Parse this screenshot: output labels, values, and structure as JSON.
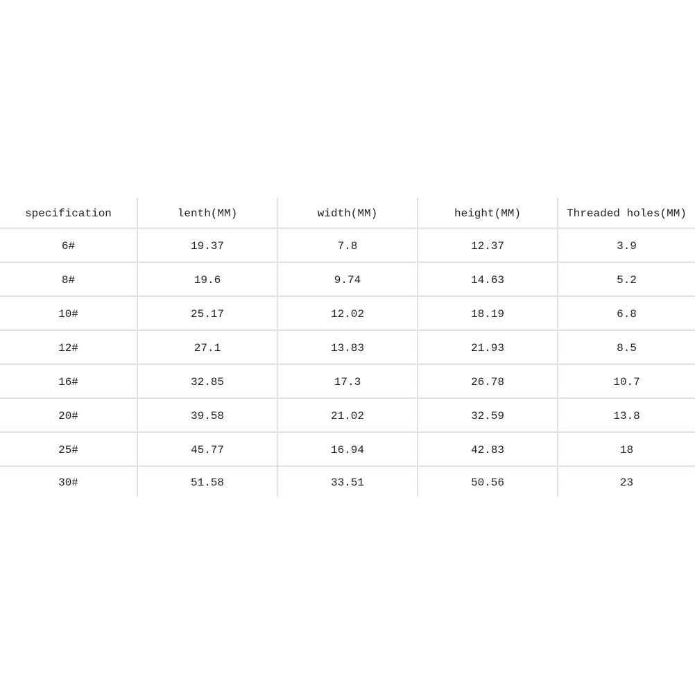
{
  "table": {
    "headers": [
      "specification",
      "lenth(MM)",
      "width(MM)",
      "height(MM)",
      "Threaded holes(MM)"
    ],
    "rows": [
      [
        "6#",
        "19.37",
        "7.8",
        "12.37",
        "3.9"
      ],
      [
        "8#",
        "19.6",
        "9.74",
        "14.63",
        "5.2"
      ],
      [
        "10#",
        "25.17",
        "12.02",
        "18.19",
        "6.8"
      ],
      [
        "12#",
        "27.1",
        "13.83",
        "21.93",
        "8.5"
      ],
      [
        "16#",
        "32.85",
        "17.3",
        "26.78",
        "10.7"
      ],
      [
        "20#",
        "39.58",
        "21.02",
        "32.59",
        "13.8"
      ],
      [
        "25#",
        "45.77",
        "16.94",
        "42.83",
        "18"
      ],
      [
        "30#",
        "51.58",
        "33.51",
        "50.56",
        "23"
      ]
    ]
  },
  "colors": {
    "grid": "#dde3ee",
    "text": "#222222"
  }
}
